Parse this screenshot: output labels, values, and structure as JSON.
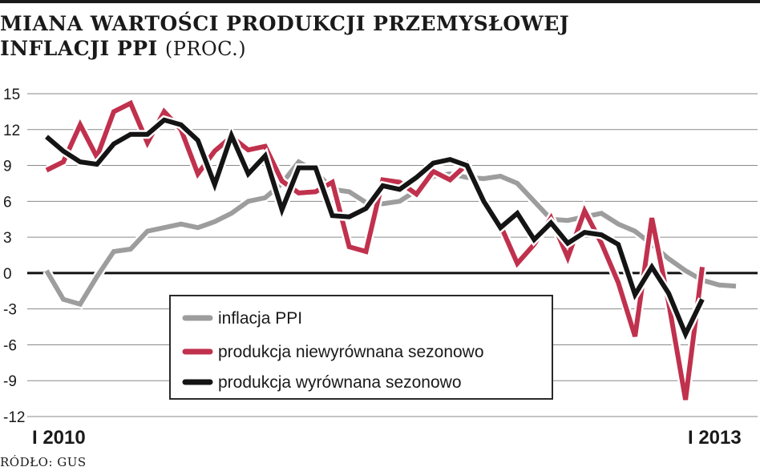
{
  "title": {
    "line1": "MIANA WARTOŚCI PRODUKCJI PRZEMYSŁOWEJ",
    "line2": "INFLACJI PPI",
    "unit": "(PROC.)"
  },
  "source": "RÓDŁO: GUS",
  "colors": {
    "ppi": "#9d9d9d",
    "nsa": "#c0314d",
    "sa": "#141414",
    "grid": "#8a8a8a",
    "zero": "#111111"
  },
  "chart_data": {
    "type": "line",
    "ylim": [
      -12,
      15
    ],
    "yticks": [
      15,
      12,
      9,
      6,
      3,
      0,
      -3,
      -6,
      -9,
      -12
    ],
    "xtick_labels": [
      "I 2010",
      "I 2013"
    ],
    "grid": "horizontal",
    "legend_position": "bottom-center",
    "series": [
      {
        "key": "ppi",
        "name": "inflacja PPI",
        "values": [
          0.2,
          -2.2,
          -2.6,
          -0.3,
          1.8,
          2.0,
          3.5,
          3.8,
          4.1,
          3.8,
          4.3,
          5.0,
          6.0,
          6.3,
          7.5,
          9.3,
          8.5,
          7.0,
          6.8,
          5.9,
          5.8,
          6.0,
          6.9,
          8.1,
          8.3,
          8.0,
          7.9,
          8.1,
          7.5,
          6.0,
          4.5,
          4.4,
          4.7,
          5.0,
          4.1,
          3.5,
          2.4,
          1.2,
          0.2,
          -0.6,
          -1.0,
          -1.1
        ]
      },
      {
        "key": "nsa",
        "name": "produkcja niewyrównana sezonowo",
        "values": [
          8.6,
          9.3,
          12.4,
          9.7,
          13.5,
          14.2,
          10.9,
          13.5,
          12.0,
          8.3,
          10.2,
          11.4,
          10.3,
          10.6,
          7.7,
          6.7,
          6.8,
          7.6,
          2.2,
          1.8,
          7.8,
          7.6,
          6.6,
          8.5,
          7.8,
          9.1,
          6.0,
          4.0,
          0.8,
          2.4,
          4.6,
          1.3,
          5.2,
          2.5,
          -0.8,
          -5.3,
          4.6,
          -2.5,
          -10.6,
          0.5
        ]
      },
      {
        "key": "sa",
        "name": "produkcja wyrównana sezonowo",
        "values": [
          11.4,
          10.2,
          9.3,
          9.1,
          10.8,
          11.6,
          11.6,
          12.8,
          12.4,
          11.1,
          7.4,
          11.5,
          8.3,
          9.8,
          5.3,
          8.8,
          8.8,
          4.8,
          4.7,
          5.4,
          7.3,
          7.0,
          8.0,
          9.2,
          9.5,
          9.0,
          6.0,
          3.8,
          5.0,
          2.8,
          4.2,
          2.5,
          3.4,
          3.2,
          2.4,
          -1.8,
          0.5,
          -1.7,
          -5.1,
          -2.2
        ]
      }
    ]
  }
}
